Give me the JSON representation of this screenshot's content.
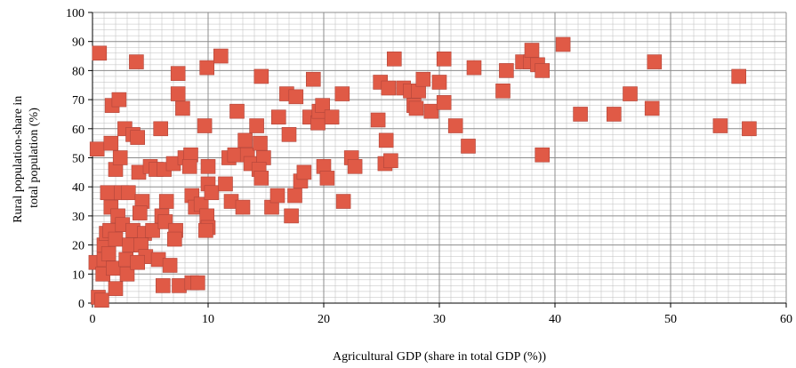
{
  "chart_data": {
    "type": "scatter",
    "title": "",
    "xlabel": "Agricultural GDP (share in total GDP (%))",
    "ylabel": "Rural population-share in total population (%)",
    "ylabel_lines": [
      "Rural population-share in",
      "total population (%)"
    ],
    "xlim": [
      0,
      60
    ],
    "ylim": [
      0,
      100
    ],
    "x_major_ticks": [
      0,
      10,
      20,
      30,
      40,
      50,
      60
    ],
    "y_major_ticks": [
      0,
      10,
      20,
      30,
      40,
      50,
      60,
      70,
      80,
      90,
      100
    ],
    "x_minor_step": 1,
    "y_minor_step": 2,
    "grid": true,
    "legend": "none",
    "colors": {
      "marker": "#e05a46",
      "marker_edge": "#b0453a",
      "major_grid": "#8c8c8c",
      "minor_grid": "#bdbdbd",
      "axis": "#000000"
    },
    "series": [
      {
        "points": [
          [
            0.6,
            86
          ],
          [
            0.4,
            53
          ],
          [
            0.3,
            14
          ],
          [
            0.5,
            2
          ],
          [
            0.8,
            1
          ],
          [
            1,
            15
          ],
          [
            1,
            20
          ],
          [
            1.2,
            24
          ],
          [
            1.5,
            25
          ],
          [
            0.9,
            10
          ],
          [
            1.4,
            17
          ],
          [
            1.6,
            33
          ],
          [
            1.3,
            38
          ],
          [
            1.6,
            55
          ],
          [
            1.7,
            68
          ],
          [
            2,
            46
          ],
          [
            2.3,
            70
          ],
          [
            2.4,
            50
          ],
          [
            2.8,
            60
          ],
          [
            2.5,
            38
          ],
          [
            2.2,
            30
          ],
          [
            2.6,
            27
          ],
          [
            2,
            22
          ],
          [
            1.8,
            12
          ],
          [
            2,
            5
          ],
          [
            2.9,
            15
          ],
          [
            3,
            10
          ],
          [
            3.2,
            20
          ],
          [
            3.5,
            25
          ],
          [
            3.1,
            38
          ],
          [
            3.5,
            58
          ],
          [
            3.9,
            57
          ],
          [
            3.8,
            83
          ],
          [
            4,
            45
          ],
          [
            4.3,
            35
          ],
          [
            4.1,
            31
          ],
          [
            4.5,
            24
          ],
          [
            4.2,
            20
          ],
          [
            4.6,
            16
          ],
          [
            3.9,
            14
          ],
          [
            5,
            47
          ],
          [
            5.5,
            46
          ],
          [
            5.7,
            15
          ],
          [
            5.2,
            25
          ],
          [
            5.9,
            60
          ],
          [
            6.2,
            46
          ],
          [
            6.4,
            35
          ],
          [
            6,
            30
          ],
          [
            6.3,
            28
          ],
          [
            6.7,
            13
          ],
          [
            6.1,
            6
          ],
          [
            7,
            48
          ],
          [
            7.2,
            25
          ],
          [
            7.1,
            22
          ],
          [
            7.4,
            79
          ],
          [
            7.4,
            72
          ],
          [
            7.8,
            67
          ],
          [
            7.5,
            6
          ],
          [
            8,
            50
          ],
          [
            8.5,
            51
          ],
          [
            8.4,
            47
          ],
          [
            8.6,
            37
          ],
          [
            8.9,
            33
          ],
          [
            8.6,
            7
          ],
          [
            9.1,
            7
          ],
          [
            9.4,
            34
          ],
          [
            9.7,
            61
          ],
          [
            9.9,
            81
          ],
          [
            10,
            47
          ],
          [
            10,
            41
          ],
          [
            10.3,
            38
          ],
          [
            9.9,
            30
          ],
          [
            10,
            26
          ],
          [
            9.8,
            25
          ],
          [
            11.1,
            85
          ],
          [
            11.5,
            41
          ],
          [
            11.8,
            50
          ],
          [
            12.3,
            51
          ],
          [
            12.5,
            66
          ],
          [
            12,
            35
          ],
          [
            13,
            33
          ],
          [
            13.2,
            56
          ],
          [
            13.4,
            51
          ],
          [
            13.7,
            48
          ],
          [
            14.2,
            61
          ],
          [
            14.6,
            78
          ],
          [
            14.5,
            55
          ],
          [
            14.8,
            50
          ],
          [
            14.4,
            46
          ],
          [
            14.6,
            43
          ],
          [
            15.5,
            33
          ],
          [
            16,
            37
          ],
          [
            16.1,
            64
          ],
          [
            16.8,
            72
          ],
          [
            17,
            58
          ],
          [
            17.2,
            30
          ],
          [
            17.5,
            37
          ],
          [
            17.6,
            71
          ],
          [
            18,
            42
          ],
          [
            18.3,
            45
          ],
          [
            18.8,
            64
          ],
          [
            19.1,
            77
          ],
          [
            19.5,
            62
          ],
          [
            19.6,
            66
          ],
          [
            19.9,
            68
          ],
          [
            20,
            47
          ],
          [
            20.3,
            43
          ],
          [
            20.7,
            64
          ],
          [
            21.6,
            72
          ],
          [
            21.7,
            35
          ],
          [
            22.4,
            50
          ],
          [
            22.7,
            47
          ],
          [
            24.7,
            63
          ],
          [
            24.9,
            76
          ],
          [
            25.3,
            48
          ],
          [
            25.4,
            56
          ],
          [
            25.6,
            74
          ],
          [
            25.8,
            49
          ],
          [
            26.1,
            84
          ],
          [
            26.9,
            74
          ],
          [
            27.5,
            73
          ],
          [
            27.8,
            68
          ],
          [
            28,
            67
          ],
          [
            28.2,
            73
          ],
          [
            28.6,
            77
          ],
          [
            29.3,
            66
          ],
          [
            30,
            76
          ],
          [
            30.4,
            84
          ],
          [
            30.4,
            69
          ],
          [
            31.4,
            61
          ],
          [
            32.5,
            54
          ],
          [
            33,
            81
          ],
          [
            35.5,
            73
          ],
          [
            35.8,
            80
          ],
          [
            37.2,
            83
          ],
          [
            37.9,
            83
          ],
          [
            38,
            87
          ],
          [
            38.5,
            82
          ],
          [
            38.9,
            80
          ],
          [
            38.9,
            51
          ],
          [
            40.7,
            89
          ],
          [
            42.2,
            65
          ],
          [
            45.1,
            65
          ],
          [
            46.5,
            72
          ],
          [
            48.4,
            67
          ],
          [
            48.6,
            83
          ],
          [
            54.3,
            61
          ],
          [
            55.9,
            78
          ],
          [
            56.8,
            60
          ]
        ]
      }
    ]
  }
}
